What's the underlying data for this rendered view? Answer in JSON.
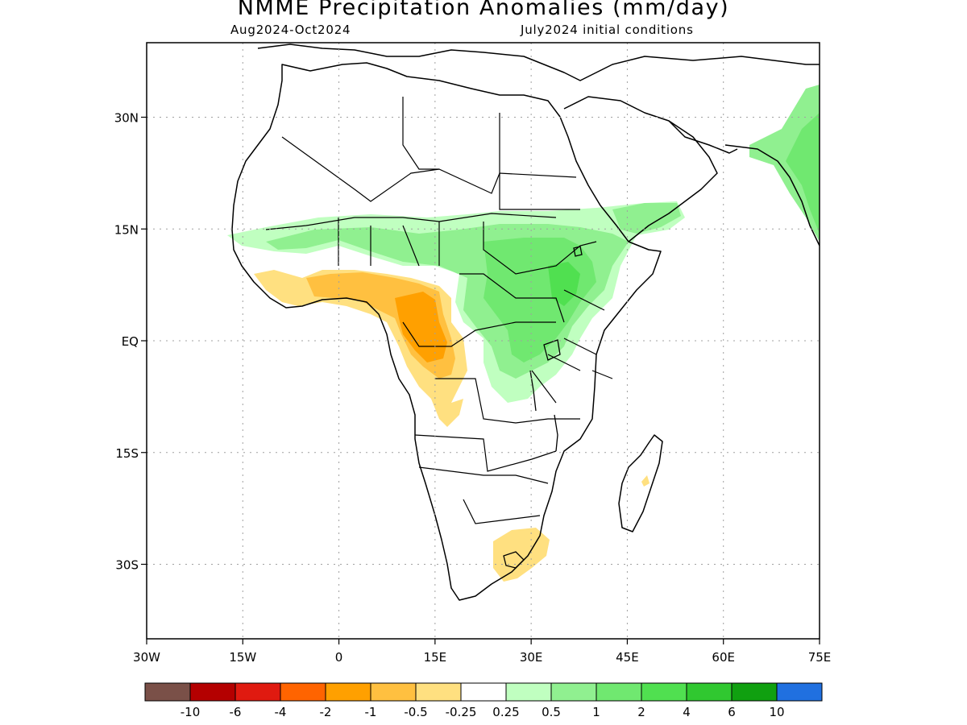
{
  "header": {
    "title": "NMME Precipitation Anomalies (mm/day)",
    "period": "Aug2024-Oct2024",
    "initial_conditions": "July2024 initial conditions"
  },
  "map": {
    "lon_range": [
      -30,
      75
    ],
    "lat_range": [
      -40,
      40
    ],
    "gridlines": "dotted",
    "lon_ticks": [
      {
        "value": -30,
        "label": "30W"
      },
      {
        "value": -15,
        "label": "15W"
      },
      {
        "value": 0,
        "label": "0"
      },
      {
        "value": 15,
        "label": "15E"
      },
      {
        "value": 30,
        "label": "30E"
      },
      {
        "value": 45,
        "label": "45E"
      },
      {
        "value": 60,
        "label": "60E"
      },
      {
        "value": 75,
        "label": "75E"
      }
    ],
    "lat_ticks": [
      {
        "value": 30,
        "label": "30N"
      },
      {
        "value": 15,
        "label": "15N"
      },
      {
        "value": 0,
        "label": "EQ"
      },
      {
        "value": -15,
        "label": "15S"
      },
      {
        "value": -30,
        "label": "30S"
      }
    ]
  },
  "legend": {
    "colors": [
      "#7a5048",
      "#b40000",
      "#e01a10",
      "#ff6400",
      "#ffa000",
      "#ffc040",
      "#ffe080",
      "#ffffff",
      "#c0ffc0",
      "#90f090",
      "#70e870",
      "#50e050",
      "#30c830",
      "#10a010",
      "#2070e0"
    ],
    "labels": [
      "-10",
      "-6",
      "-4",
      "-2",
      "-1",
      "-0.5",
      "-0.25",
      "0.25",
      "0.5",
      "1",
      "2",
      "4",
      "6",
      "10"
    ]
  }
}
